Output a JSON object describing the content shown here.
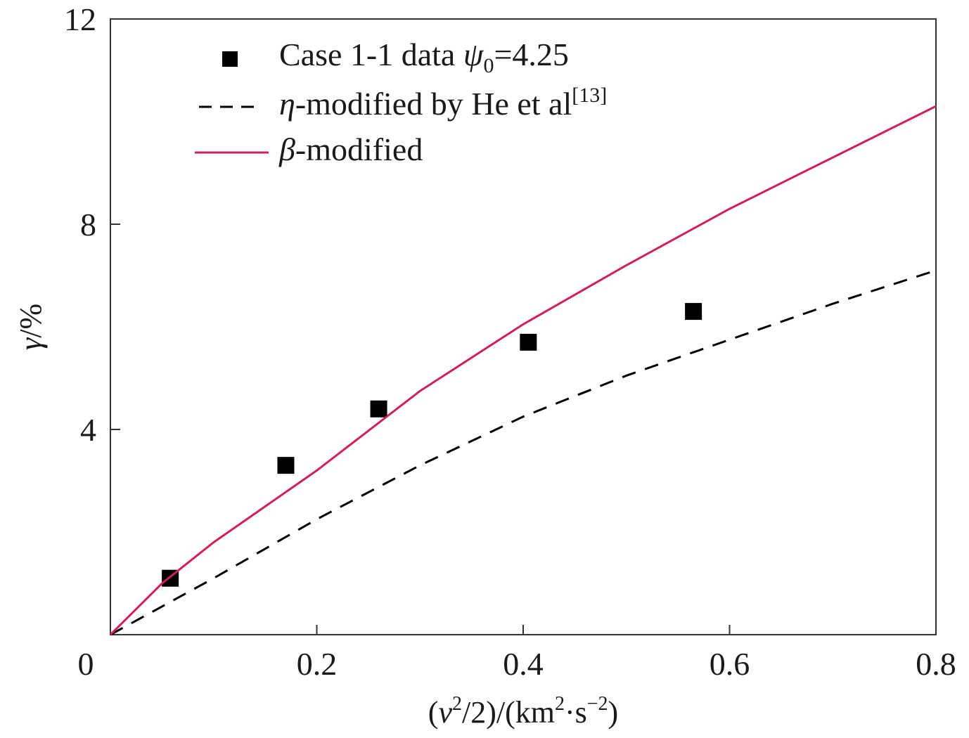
{
  "chart_data": {
    "type": "scatter",
    "xlabel": "(v²/2)/(km²·s⁻²)",
    "ylabel": "γ/%",
    "xlim": [
      0,
      0.8
    ],
    "ylim": [
      0,
      12
    ],
    "x_ticks": [
      0,
      0.2,
      0.4,
      0.6,
      0.8
    ],
    "x_tick_labels": [
      "0",
      "0.2",
      "0.4",
      "0.6",
      "0.8"
    ],
    "y_ticks": [
      4,
      8,
      12
    ],
    "y_tick_labels": [
      "4",
      "8",
      "12"
    ],
    "grid": false,
    "legend_position": "top-left",
    "series": [
      {
        "name": "Case 1-1 data ψ0=4.25",
        "kind": "marker",
        "color": "#000000",
        "x": [
          0.058,
          0.17,
          0.26,
          0.405,
          0.565
        ],
        "y": [
          1.1,
          3.3,
          4.4,
          5.7,
          6.3
        ]
      },
      {
        "name": "η-modified by He et al[13]",
        "kind": "dashed-line",
        "color": "#000000",
        "x": [
          0.0,
          0.05,
          0.1,
          0.2,
          0.3,
          0.4,
          0.5,
          0.6,
          0.7,
          0.8
        ],
        "y": [
          0.0,
          0.55,
          1.1,
          2.25,
          3.3,
          4.25,
          5.05,
          5.75,
          6.45,
          7.1
        ]
      },
      {
        "name": "β-modified",
        "kind": "solid-line",
        "color": "#d0205a",
        "x": [
          0.0,
          0.05,
          0.1,
          0.2,
          0.3,
          0.4,
          0.5,
          0.6,
          0.7,
          0.8
        ],
        "y": [
          0.0,
          1.0,
          1.8,
          3.2,
          4.75,
          6.05,
          7.2,
          8.3,
          9.3,
          10.3
        ]
      }
    ],
    "legend": {
      "entries": [
        {
          "prefix": "Case 1-1 data ",
          "var": "ψ",
          "sub": "0",
          "suffix": "=4.25"
        },
        {
          "prefix": "",
          "var": "η",
          "suffix": "-modified by He et al",
          "sup": "[13]"
        },
        {
          "prefix": "",
          "var": "β",
          "suffix": "-modified"
        }
      ]
    },
    "xlabel_parts": {
      "open": "(",
      "var": "v",
      "sup1": "2",
      "mid": "/2)/(km",
      "sup2": "2",
      "dot": "·s",
      "sup3": "−2",
      "close": ")"
    },
    "ylabel_parts": {
      "var": "γ",
      "rest": "/%"
    }
  }
}
